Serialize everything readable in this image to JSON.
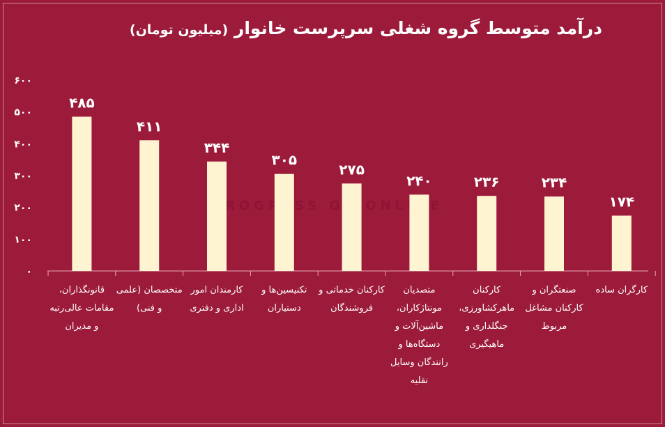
{
  "title": {
    "main": "درآمد متوسط گروه شغلی سرپرست خانوار",
    "sub": "(میلیون تومان)"
  },
  "watermark": "PROGRESS OF ONLINE",
  "chart_data": {
    "type": "bar",
    "title": "درآمد متوسط گروه شغلی سرپرست خانوار (میلیون تومان)",
    "categories": [
      "قانونگذاران، مقامات عالی‌رتبه و مدیران",
      "متخصصان (علمی و فنی)",
      "کارمندان امور اداری و دفتری",
      "تکنیسین‌ها و دستیاران",
      "کارکنان خدماتی و فروشندگان",
      "متصدیان مونتاژکاران، ماشین‌آلات و دستگاه‌ها و رانندگان وسایل نقلیه",
      "کارکنان ماهرکشاورزی، جنگلداری و ماهیگیری",
      "صنعتگران و کارکنان مشاغل مربوط",
      "کارگران ساده"
    ],
    "values": [
      485,
      411,
      344,
      305,
      275,
      240,
      236,
      234,
      174
    ],
    "value_labels": [
      "۴۸۵",
      "۴۱۱",
      "۳۴۴",
      "۳۰۵",
      "۲۷۵",
      "۲۴۰",
      "۲۳۶",
      "۲۳۴",
      "۱۷۴"
    ],
    "yticks": [
      0,
      100,
      200,
      300,
      400,
      500,
      600
    ],
    "ytick_labels": [
      "۰",
      "۱۰۰",
      "۲۰۰",
      "۳۰۰",
      "۴۰۰",
      "۵۰۰",
      "۶۰۰"
    ],
    "ylim": [
      0,
      600
    ],
    "grid": false,
    "bar_color": "#fff4d1",
    "background": "#9c1a3a"
  }
}
